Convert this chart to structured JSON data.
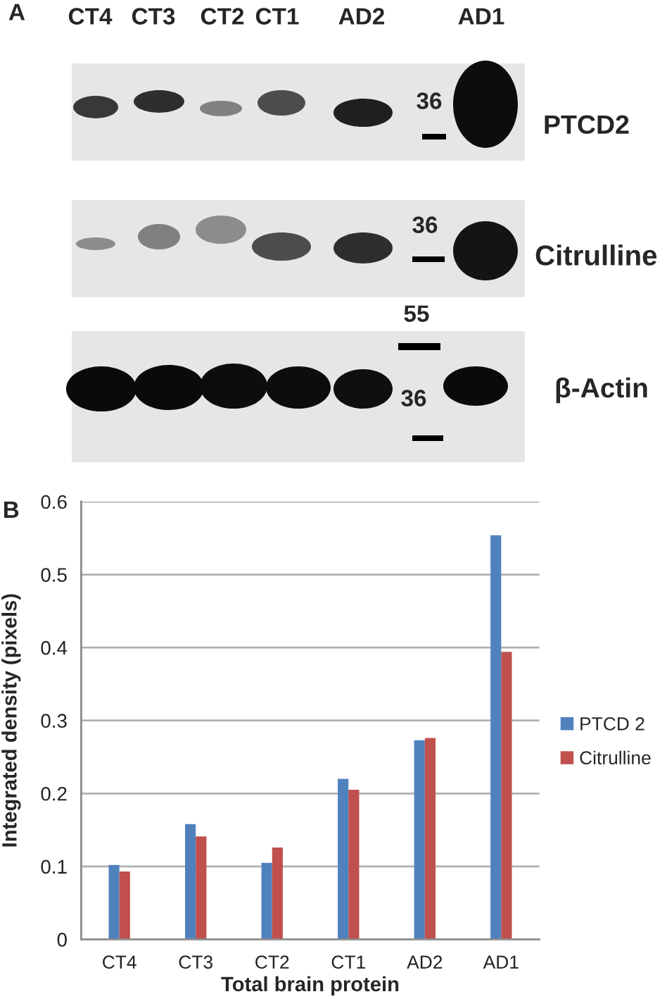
{
  "chart_data": [
    {
      "type": "other",
      "title": "A",
      "annotations": [
        "CT4",
        "CT3",
        "CT2",
        "CT1",
        "AD2",
        "AD1",
        "PTCD2",
        "Citrulline",
        "β-Actin",
        "36",
        "36",
        "55",
        "36"
      ]
    },
    {
      "type": "bar",
      "title": "B",
      "categories": [
        "CT4",
        "CT3",
        "CT2",
        "CT1",
        "AD2",
        "AD1"
      ],
      "series": [
        {
          "name": "PTCD 2",
          "color": "#4f81bd",
          "values": [
            0.102,
            0.158,
            0.105,
            0.22,
            0.273,
            0.554
          ]
        },
        {
          "name": "Citrulline",
          "color": "#c0504d",
          "values": [
            0.093,
            0.141,
            0.126,
            0.205,
            0.276,
            0.394
          ]
        }
      ],
      "xlabel": "Total brain protein",
      "ylabel": "Integrated density (pixels)",
      "ylim": [
        0,
        0.6
      ],
      "yticks": [
        0,
        0.1,
        0.2,
        0.3,
        0.4,
        0.5,
        0.6
      ],
      "grid": "y",
      "legend": "right"
    }
  ]
}
